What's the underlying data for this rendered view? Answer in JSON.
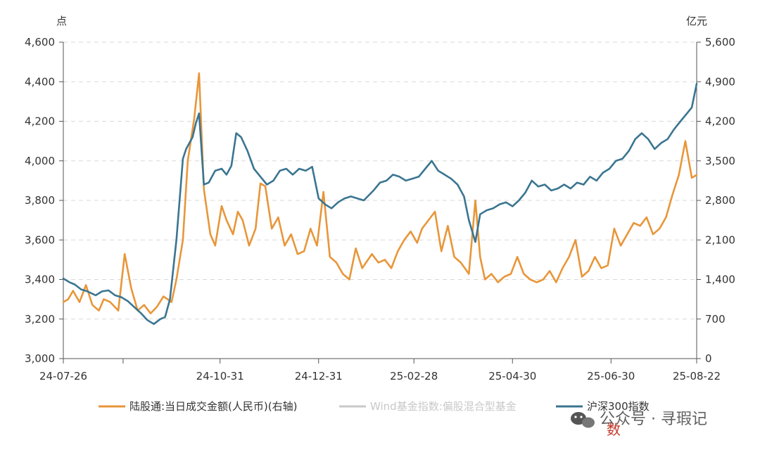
{
  "chart_data": {
    "type": "line",
    "left_unit": "点",
    "right_unit": "亿元",
    "y_left": {
      "ticks": [
        "3,000",
        "3,200",
        "3,400",
        "3,600",
        "3,800",
        "4,000",
        "4,200",
        "4,400",
        "4,600"
      ],
      "range": [
        3000,
        4600
      ]
    },
    "y_right": {
      "ticks": [
        "0",
        "700",
        "1,400",
        "2,100",
        "2,800",
        "3,500",
        "4,200",
        "4,900",
        "5,600"
      ],
      "range": [
        0,
        5600
      ]
    },
    "x_dates": [
      "2024-07-26",
      "2025-08-22"
    ],
    "x_ticks": [
      {
        "label": "24-07-26",
        "date": "2024-07-26"
      },
      {
        "label": "",
        "date": "2024-09-01"
      },
      {
        "label": "24-10-31",
        "date": "2024-10-31"
      },
      {
        "label": "24-12-31",
        "date": "2024-12-31"
      },
      {
        "label": "25-02-28",
        "date": "2025-02-28"
      },
      {
        "label": "25-04-30",
        "date": "2025-04-30"
      },
      {
        "label": "25-06-30",
        "date": "2025-06-30"
      },
      {
        "label": "25-08-22",
        "date": "2025-08-22"
      }
    ],
    "grid": true,
    "legend_position": "bottom",
    "series": [
      {
        "name": "陆股通:当日成交金额(人民币)(右轴)",
        "axis": "right",
        "color": "#e8963a",
        "points": [
          [
            "2024-07-26",
            1000
          ],
          [
            "2024-07-29",
            1050
          ],
          [
            "2024-08-01",
            1200
          ],
          [
            "2024-08-05",
            1000
          ],
          [
            "2024-08-09",
            1300
          ],
          [
            "2024-08-13",
            950
          ],
          [
            "2024-08-17",
            850
          ],
          [
            "2024-08-20",
            1050
          ],
          [
            "2024-08-24",
            1000
          ],
          [
            "2024-08-29",
            850
          ],
          [
            "2024-09-02",
            1850
          ],
          [
            "2024-09-06",
            1250
          ],
          [
            "2024-09-10",
            850
          ],
          [
            "2024-09-14",
            950
          ],
          [
            "2024-09-18",
            800
          ],
          [
            "2024-09-22",
            920
          ],
          [
            "2024-09-26",
            1100
          ],
          [
            "2024-10-01",
            1000
          ],
          [
            "2024-10-04",
            1400
          ],
          [
            "2024-10-08",
            2100
          ],
          [
            "2024-10-11",
            3500
          ],
          [
            "2024-10-15",
            4250
          ],
          [
            "2024-10-18",
            5050
          ],
          [
            "2024-10-21",
            3000
          ],
          [
            "2024-10-25",
            2200
          ],
          [
            "2024-10-28",
            2000
          ],
          [
            "2024-11-01",
            2700
          ],
          [
            "2024-11-04",
            2450
          ],
          [
            "2024-11-08",
            2200
          ],
          [
            "2024-11-11",
            2600
          ],
          [
            "2024-11-14",
            2450
          ],
          [
            "2024-11-18",
            2000
          ],
          [
            "2024-11-22",
            2300
          ],
          [
            "2024-11-25",
            3100
          ],
          [
            "2024-11-28",
            3050
          ],
          [
            "2024-12-02",
            2300
          ],
          [
            "2024-12-06",
            2500
          ],
          [
            "2024-12-10",
            2000
          ],
          [
            "2024-12-14",
            2200
          ],
          [
            "2024-12-18",
            1850
          ],
          [
            "2024-12-22",
            1900
          ],
          [
            "2024-12-26",
            2300
          ],
          [
            "2024-12-30",
            2000
          ],
          [
            "2025-01-03",
            2950
          ],
          [
            "2025-01-07",
            1800
          ],
          [
            "2025-01-11",
            1700
          ],
          [
            "2025-01-15",
            1500
          ],
          [
            "2025-01-19",
            1400
          ],
          [
            "2025-01-23",
            1950
          ],
          [
            "2025-01-27",
            1600
          ],
          [
            "2025-02-02",
            1850
          ],
          [
            "2025-02-06",
            1700
          ],
          [
            "2025-02-10",
            1750
          ],
          [
            "2025-02-14",
            1600
          ],
          [
            "2025-02-18",
            1900
          ],
          [
            "2025-02-22",
            2100
          ],
          [
            "2025-02-26",
            2250
          ],
          [
            "2025-03-02",
            2050
          ],
          [
            "2025-03-05",
            2300
          ],
          [
            "2025-03-09",
            2450
          ],
          [
            "2025-03-13",
            2600
          ],
          [
            "2025-03-17",
            1900
          ],
          [
            "2025-03-21",
            2350
          ],
          [
            "2025-03-25",
            1800
          ],
          [
            "2025-03-29",
            1700
          ],
          [
            "2025-04-03",
            1500
          ],
          [
            "2025-04-07",
            2800
          ],
          [
            "2025-04-10",
            1800
          ],
          [
            "2025-04-13",
            1400
          ],
          [
            "2025-04-17",
            1500
          ],
          [
            "2025-04-21",
            1350
          ],
          [
            "2025-04-25",
            1450
          ],
          [
            "2025-04-29",
            1500
          ],
          [
            "2025-05-03",
            1800
          ],
          [
            "2025-05-07",
            1500
          ],
          [
            "2025-05-11",
            1400
          ],
          [
            "2025-05-15",
            1350
          ],
          [
            "2025-05-19",
            1400
          ],
          [
            "2025-05-23",
            1550
          ],
          [
            "2025-05-27",
            1350
          ],
          [
            "2025-05-31",
            1600
          ],
          [
            "2025-06-04",
            1800
          ],
          [
            "2025-06-08",
            2100
          ],
          [
            "2025-06-12",
            1450
          ],
          [
            "2025-06-16",
            1550
          ],
          [
            "2025-06-20",
            1800
          ],
          [
            "2025-06-24",
            1600
          ],
          [
            "2025-06-28",
            1650
          ],
          [
            "2025-07-02",
            2300
          ],
          [
            "2025-07-06",
            2000
          ],
          [
            "2025-07-10",
            2200
          ],
          [
            "2025-07-14",
            2400
          ],
          [
            "2025-07-18",
            2350
          ],
          [
            "2025-07-22",
            2500
          ],
          [
            "2025-07-26",
            2200
          ],
          [
            "2025-07-30",
            2300
          ],
          [
            "2025-08-03",
            2500
          ],
          [
            "2025-08-07",
            2900
          ],
          [
            "2025-08-11",
            3250
          ],
          [
            "2025-08-15",
            3850
          ],
          [
            "2025-08-19",
            3200
          ],
          [
            "2025-08-22",
            3250
          ]
        ]
      },
      {
        "name": "Wind基金指数:偏股混合型基金",
        "axis": "left",
        "color": "#c8c8c8",
        "points": []
      },
      {
        "name": "沪深300指数",
        "axis": "left",
        "color": "#3a7591",
        "points": [
          [
            "2024-07-26",
            3405
          ],
          [
            "2024-07-30",
            3385
          ],
          [
            "2024-08-02",
            3375
          ],
          [
            "2024-08-06",
            3350
          ],
          [
            "2024-08-10",
            3340
          ],
          [
            "2024-08-15",
            3320
          ],
          [
            "2024-08-19",
            3340
          ],
          [
            "2024-08-23",
            3345
          ],
          [
            "2024-08-27",
            3320
          ],
          [
            "2024-08-31",
            3310
          ],
          [
            "2024-09-04",
            3290
          ],
          [
            "2024-09-08",
            3260
          ],
          [
            "2024-09-12",
            3230
          ],
          [
            "2024-09-16",
            3195
          ],
          [
            "2024-09-20",
            3175
          ],
          [
            "2024-09-24",
            3200
          ],
          [
            "2024-09-27",
            3210
          ],
          [
            "2024-09-30",
            3300
          ],
          [
            "2024-10-04",
            3600
          ],
          [
            "2024-10-08",
            4010
          ],
          [
            "2024-10-10",
            4060
          ],
          [
            "2024-10-14",
            4120
          ],
          [
            "2024-10-16",
            4190
          ],
          [
            "2024-10-18",
            4240
          ],
          [
            "2024-10-21",
            3880
          ],
          [
            "2024-10-24",
            3890
          ],
          [
            "2024-10-28",
            3950
          ],
          [
            "2024-11-01",
            3960
          ],
          [
            "2024-11-04",
            3930
          ],
          [
            "2024-11-07",
            3975
          ],
          [
            "2024-11-10",
            4140
          ],
          [
            "2024-11-13",
            4120
          ],
          [
            "2024-11-17",
            4050
          ],
          [
            "2024-11-21",
            3960
          ],
          [
            "2024-11-25",
            3920
          ],
          [
            "2024-11-29",
            3880
          ],
          [
            "2024-12-03",
            3900
          ],
          [
            "2024-12-07",
            3950
          ],
          [
            "2024-12-11",
            3960
          ],
          [
            "2024-12-15",
            3930
          ],
          [
            "2024-12-19",
            3960
          ],
          [
            "2024-12-23",
            3950
          ],
          [
            "2024-12-27",
            3970
          ],
          [
            "2024-12-31",
            3810
          ],
          [
            "2025-01-04",
            3780
          ],
          [
            "2025-01-08",
            3760
          ],
          [
            "2025-01-12",
            3790
          ],
          [
            "2025-01-16",
            3810
          ],
          [
            "2025-01-20",
            3820
          ],
          [
            "2025-01-24",
            3810
          ],
          [
            "2025-01-28",
            3800
          ],
          [
            "2025-02-03",
            3850
          ],
          [
            "2025-02-07",
            3890
          ],
          [
            "2025-02-11",
            3900
          ],
          [
            "2025-02-15",
            3930
          ],
          [
            "2025-02-19",
            3920
          ],
          [
            "2025-02-23",
            3900
          ],
          [
            "2025-02-27",
            3910
          ],
          [
            "2025-03-03",
            3920
          ],
          [
            "2025-03-07",
            3960
          ],
          [
            "2025-03-11",
            4000
          ],
          [
            "2025-03-15",
            3950
          ],
          [
            "2025-03-19",
            3930
          ],
          [
            "2025-03-23",
            3910
          ],
          [
            "2025-03-27",
            3880
          ],
          [
            "2025-03-31",
            3820
          ],
          [
            "2025-04-03",
            3700
          ],
          [
            "2025-04-07",
            3590
          ],
          [
            "2025-04-10",
            3730
          ],
          [
            "2025-04-14",
            3750
          ],
          [
            "2025-04-18",
            3760
          ],
          [
            "2025-04-22",
            3780
          ],
          [
            "2025-04-26",
            3790
          ],
          [
            "2025-04-30",
            3770
          ],
          [
            "2025-05-04",
            3800
          ],
          [
            "2025-05-08",
            3840
          ],
          [
            "2025-05-12",
            3900
          ],
          [
            "2025-05-16",
            3870
          ],
          [
            "2025-05-20",
            3880
          ],
          [
            "2025-05-24",
            3850
          ],
          [
            "2025-05-28",
            3860
          ],
          [
            "2025-06-01",
            3880
          ],
          [
            "2025-06-05",
            3860
          ],
          [
            "2025-06-09",
            3890
          ],
          [
            "2025-06-13",
            3880
          ],
          [
            "2025-06-17",
            3920
          ],
          [
            "2025-06-21",
            3900
          ],
          [
            "2025-06-25",
            3940
          ],
          [
            "2025-06-29",
            3960
          ],
          [
            "2025-07-03",
            4000
          ],
          [
            "2025-07-07",
            4010
          ],
          [
            "2025-07-11",
            4050
          ],
          [
            "2025-07-15",
            4110
          ],
          [
            "2025-07-19",
            4140
          ],
          [
            "2025-07-23",
            4110
          ],
          [
            "2025-07-27",
            4060
          ],
          [
            "2025-07-31",
            4090
          ],
          [
            "2025-08-04",
            4110
          ],
          [
            "2025-08-08",
            4160
          ],
          [
            "2025-08-12",
            4200
          ],
          [
            "2025-08-16",
            4240
          ],
          [
            "2025-08-19",
            4270
          ],
          [
            "2025-08-22",
            4390
          ]
        ]
      }
    ]
  },
  "watermark": {
    "line1": "公众号 · 寻瑕记",
    "line2": "数"
  }
}
